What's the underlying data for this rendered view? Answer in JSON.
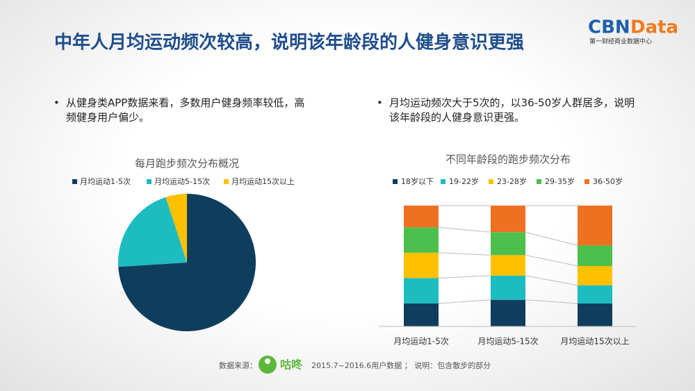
{
  "header": {
    "title": "中年人月均运动频次较高，说明该年龄段的人健身意识更强",
    "logo_a": "CBN",
    "logo_b": "Data",
    "logo_sub": "第一财经商业数据中心"
  },
  "bullets": [
    "从健身类APP数据来看，多数用户健身频率较低，高频健身用户偏少。",
    "月均运动频次大于5次的，以36-50岁人群居多，说明该年龄段的人健身意识更强。"
  ],
  "chart_data": [
    {
      "type": "pie",
      "title": "每月跑步频次分布概况",
      "categories": [
        "月均运动1-5次",
        "月均运动5-15次",
        "月均运动15次以上"
      ],
      "values": [
        74,
        21,
        5
      ],
      "colors": [
        "#0f3d5e",
        "#1cbcc0",
        "#ffc000"
      ]
    },
    {
      "type": "stacked_bar",
      "title": "不同年龄段的跑步频次分布",
      "categories": [
        "月均运动1-5次",
        "月均运动5-15次",
        "月均运动15次以上"
      ],
      "ylim": [
        0,
        100
      ],
      "series": [
        {
          "name": "18岁以下",
          "color": "#0f3d5e",
          "values": [
            19,
            22,
            19
          ]
        },
        {
          "name": "19-22岁",
          "color": "#1cbcc0",
          "values": [
            21,
            20,
            15
          ]
        },
        {
          "name": "23-28岁",
          "color": "#ffc000",
          "values": [
            21,
            17,
            16
          ]
        },
        {
          "name": "29-35岁",
          "color": "#4cbf4c",
          "values": [
            21,
            19,
            17
          ]
        },
        {
          "name": "36-50岁",
          "color": "#f07022",
          "values": [
            18,
            22,
            33
          ]
        }
      ]
    }
  ],
  "footer": {
    "source_label": "数据来源：",
    "brand": "咕咚",
    "note": "2015.7~2016.6用户数据 ； 说明：包含散步的部分"
  }
}
